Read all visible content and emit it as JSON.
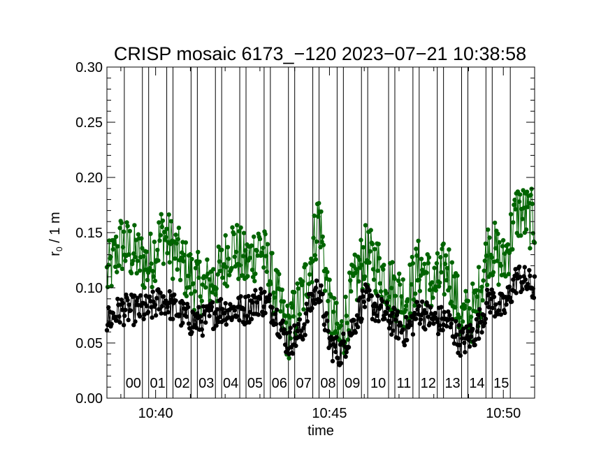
{
  "chart_data": {
    "type": "scatter",
    "title": "CRISP mosaic 6173_−120 2023−07−21 10:38:58",
    "xlabel": "time",
    "ylabel_main": "r",
    "ylabel_sub": "0",
    "ylabel_rest": " / 1 m",
    "xlim_minutes": [
      38.6,
      50.9
    ],
    "ylim": [
      0.0,
      0.3
    ],
    "y_ticks": [
      {
        "value": 0.0,
        "label": "0.00"
      },
      {
        "value": 0.05,
        "label": "0.05"
      },
      {
        "value": 0.1,
        "label": "0.10"
      },
      {
        "value": 0.15,
        "label": "0.15"
      },
      {
        "value": 0.2,
        "label": "0.20"
      },
      {
        "value": 0.25,
        "label": "0.25"
      },
      {
        "value": 0.3,
        "label": "0.30"
      }
    ],
    "x_ticks": [
      {
        "value": 40,
        "label": "10:40"
      },
      {
        "value": 45,
        "label": "10:45"
      },
      {
        "value": 50,
        "label": "10:50"
      }
    ],
    "segments": [
      {
        "label": "00",
        "start": 39.1,
        "end": 39.62
      },
      {
        "label": "01",
        "start": 39.8,
        "end": 40.32
      },
      {
        "label": "02",
        "start": 40.5,
        "end": 41.02
      },
      {
        "label": "03",
        "start": 41.2,
        "end": 41.72
      },
      {
        "label": "04",
        "start": 41.9,
        "end": 42.42
      },
      {
        "label": "05",
        "start": 42.6,
        "end": 43.12
      },
      {
        "label": "06",
        "start": 43.3,
        "end": 43.82
      },
      {
        "label": "07",
        "start": 44.0,
        "end": 44.52
      },
      {
        "label": "08",
        "start": 44.7,
        "end": 45.22
      },
      {
        "label": "09",
        "start": 45.4,
        "end": 45.92
      },
      {
        "label": "10",
        "start": 46.1,
        "end": 46.7
      },
      {
        "label": "11",
        "start": 46.88,
        "end": 47.4
      },
      {
        "label": "12",
        "start": 47.58,
        "end": 48.1
      },
      {
        "label": "13",
        "start": 48.28,
        "end": 48.8
      },
      {
        "label": "14",
        "start": 48.98,
        "end": 49.5
      },
      {
        "label": "15",
        "start": 49.68,
        "end": 50.2
      }
    ],
    "series": [
      {
        "name": "r0 (green)",
        "color": "#006400",
        "envelope": [
          [
            38.6,
            0.11
          ],
          [
            39.0,
            0.14
          ],
          [
            39.4,
            0.13
          ],
          [
            39.8,
            0.12
          ],
          [
            40.2,
            0.15
          ],
          [
            40.6,
            0.13
          ],
          [
            41.0,
            0.11
          ],
          [
            41.4,
            0.1
          ],
          [
            41.8,
            0.11
          ],
          [
            42.2,
            0.14
          ],
          [
            42.6,
            0.12
          ],
          [
            43.0,
            0.14
          ],
          [
            43.4,
            0.1
          ],
          [
            43.8,
            0.06
          ],
          [
            44.2,
            0.09
          ],
          [
            44.5,
            0.13
          ],
          [
            44.7,
            0.17
          ],
          [
            45.0,
            0.08
          ],
          [
            45.3,
            0.05
          ],
          [
            45.6,
            0.09
          ],
          [
            46.0,
            0.13
          ],
          [
            46.4,
            0.12
          ],
          [
            46.8,
            0.1
          ],
          [
            47.2,
            0.09
          ],
          [
            47.6,
            0.12
          ],
          [
            48.0,
            0.1
          ],
          [
            48.4,
            0.12
          ],
          [
            48.8,
            0.07
          ],
          [
            49.2,
            0.08
          ],
          [
            49.6,
            0.14
          ],
          [
            50.0,
            0.12
          ],
          [
            50.4,
            0.17
          ],
          [
            50.9,
            0.16
          ]
        ]
      },
      {
        "name": "r0 (black)",
        "color": "#000000",
        "envelope": [
          [
            38.6,
            0.07
          ],
          [
            39.0,
            0.08
          ],
          [
            39.4,
            0.08
          ],
          [
            39.8,
            0.08
          ],
          [
            40.2,
            0.09
          ],
          [
            40.6,
            0.08
          ],
          [
            41.0,
            0.07
          ],
          [
            41.4,
            0.07
          ],
          [
            41.8,
            0.08
          ],
          [
            42.2,
            0.08
          ],
          [
            42.6,
            0.08
          ],
          [
            43.0,
            0.09
          ],
          [
            43.4,
            0.08
          ],
          [
            43.8,
            0.05
          ],
          [
            44.2,
            0.06
          ],
          [
            44.5,
            0.09
          ],
          [
            44.7,
            0.1
          ],
          [
            45.0,
            0.05
          ],
          [
            45.3,
            0.04
          ],
          [
            45.6,
            0.06
          ],
          [
            46.0,
            0.09
          ],
          [
            46.4,
            0.08
          ],
          [
            46.8,
            0.07
          ],
          [
            47.2,
            0.06
          ],
          [
            47.6,
            0.08
          ],
          [
            48.0,
            0.07
          ],
          [
            48.4,
            0.07
          ],
          [
            48.8,
            0.05
          ],
          [
            49.2,
            0.06
          ],
          [
            49.6,
            0.09
          ],
          [
            50.0,
            0.08
          ],
          [
            50.4,
            0.11
          ],
          [
            50.9,
            0.1
          ]
        ]
      }
    ]
  }
}
